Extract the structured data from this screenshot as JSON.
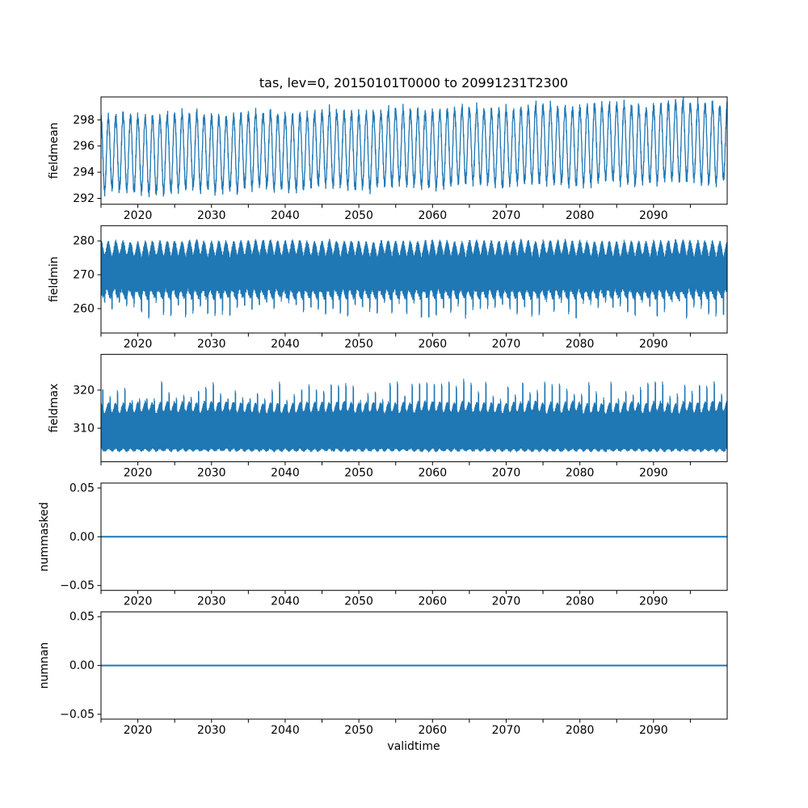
{
  "title": "tas, lev=0, 20150101T0000 to 20991231T2300",
  "xlabel": "validtime",
  "line_color": "#1f77b4",
  "axis_color": "#000000",
  "background": "#ffffff",
  "x_axis": {
    "range": [
      2015,
      2100
    ],
    "tick_step_years": 5,
    "label_step_years": 10,
    "tick_labels": [
      "2020",
      "2030",
      "2040",
      "2050",
      "2060",
      "2070",
      "2080",
      "2090"
    ]
  },
  "chart_data": [
    {
      "name": "fieldmean",
      "type": "line",
      "ylabel": "fieldmean",
      "ylim": [
        291.55,
        299.75
      ],
      "yticks": [
        {
          "v": 292,
          "label": "292"
        },
        {
          "v": 294,
          "label": "294"
        },
        {
          "v": 296,
          "label": "296"
        },
        {
          "v": 298,
          "label": "298"
        }
      ],
      "x_years": [
        2015,
        2100
      ],
      "grid": false,
      "legend": "none",
      "signal": {
        "kind": "seasonal",
        "period_years": 1,
        "base_start": 295.35,
        "base_end": 296.35,
        "amp_start": 2.75,
        "amp_end": 2.85,
        "noise": 0.45,
        "samples_per_year": 40,
        "seed": 1
      }
    },
    {
      "name": "fieldmin",
      "type": "line",
      "ylabel": "fieldmin",
      "ylim": [
        252.8,
        284.5
      ],
      "yticks": [
        {
          "v": 260,
          "label": "260"
        },
        {
          "v": 270,
          "label": "270"
        },
        {
          "v": 280,
          "label": "280"
        }
      ],
      "x_years": [
        2015,
        2100
      ],
      "grid": false,
      "legend": "none",
      "signal": {
        "kind": "band-min",
        "period_years": 1,
        "top_base": 278.2,
        "top_amp": 2.0,
        "bot_base": 263.8,
        "bot_amp": 1.2,
        "spike_phase": 0.5,
        "spike_min": 2.0,
        "spike_var": 7.5,
        "spike_width": 0.032,
        "samples_per_year": 36,
        "seed": 2
      }
    },
    {
      "name": "fieldmax",
      "type": "line",
      "ylabel": "fieldmax",
      "ylim": [
        301.2,
        329.4
      ],
      "yticks": [
        {
          "v": 310,
          "label": "310"
        },
        {
          "v": 320,
          "label": "320"
        }
      ],
      "x_years": [
        2015,
        2100
      ],
      "grid": false,
      "legend": "none",
      "signal": {
        "kind": "band-max",
        "period_years": 1,
        "top_base": 315.6,
        "top_amp": 1.3,
        "bot_base": 303.7,
        "bot_amp": 0.7,
        "spike_phase": 0.25,
        "spike_min": 2.5,
        "spike_var": 9.0,
        "spike_width": 0.028,
        "samples_per_year": 36,
        "seed": 3
      }
    },
    {
      "name": "nummasked",
      "type": "line",
      "ylabel": "nummasked",
      "ylim": [
        -0.055,
        0.055
      ],
      "yticks": [
        {
          "v": 0.05,
          "label": "0.05"
        },
        {
          "v": 0.0,
          "label": "0.00"
        },
        {
          "v": -0.05,
          "label": "−0.05"
        }
      ],
      "x_years": [
        2015,
        2100
      ],
      "grid": false,
      "legend": "none",
      "signal": {
        "kind": "constant",
        "value": 0
      }
    },
    {
      "name": "numnan",
      "type": "line",
      "ylabel": "numnan",
      "ylim": [
        -0.055,
        0.055
      ],
      "yticks": [
        {
          "v": 0.05,
          "label": "0.05"
        },
        {
          "v": 0.0,
          "label": "0.00"
        },
        {
          "v": -0.05,
          "label": "−0.05"
        }
      ],
      "x_years": [
        2015,
        2100
      ],
      "grid": false,
      "legend": "none",
      "signal": {
        "kind": "constant",
        "value": 0
      }
    }
  ]
}
